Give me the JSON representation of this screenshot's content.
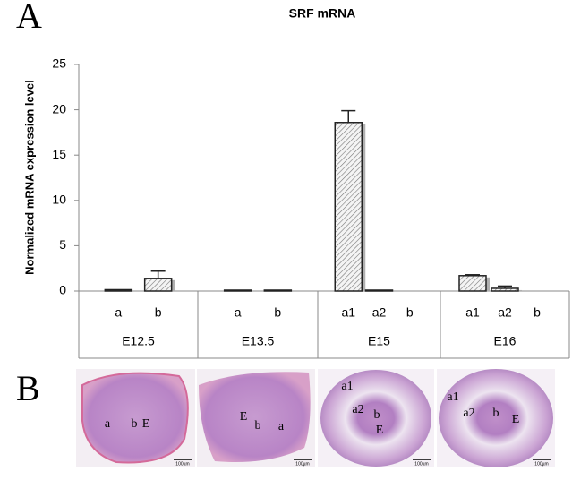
{
  "panel_labels": [
    "A",
    "B"
  ],
  "chart_data": {
    "type": "bar",
    "title": "SRF mRNA",
    "y_label": "Normalized mRNA expression level",
    "ylim": [
      0,
      25
    ],
    "yticks": [
      0,
      5,
      10,
      15,
      20,
      25
    ],
    "groups": [
      {
        "name": "E12.5",
        "categories": [
          "a",
          "b"
        ],
        "values": [
          0.15,
          1.4
        ],
        "errors": [
          null,
          0.8
        ]
      },
      {
        "name": "E13.5",
        "categories": [
          "a",
          "b"
        ],
        "values": [
          0.1,
          0.1
        ],
        "errors": [
          null,
          null
        ]
      },
      {
        "name": "E15",
        "categories": [
          "a1",
          "a2",
          "b"
        ],
        "values": [
          18.6,
          0.1,
          0
        ],
        "errors": [
          1.3,
          null,
          null
        ]
      },
      {
        "name": "E16",
        "categories": [
          "a1",
          "a2",
          "b"
        ],
        "values": [
          1.7,
          0.3,
          0
        ],
        "errors": [
          0.1,
          0.25,
          null
        ]
      }
    ]
  },
  "images": [
    {
      "labels": [
        "a",
        "b",
        "E"
      ],
      "scale": "100µm"
    },
    {
      "labels": [
        "E",
        "b",
        "a"
      ],
      "scale": "100µm"
    },
    {
      "labels": [
        "a1",
        "a2",
        "b",
        "E"
      ],
      "scale": "100µm"
    },
    {
      "labels": [
        "a1",
        "a2",
        "b",
        "E"
      ],
      "scale": "100µm"
    }
  ]
}
